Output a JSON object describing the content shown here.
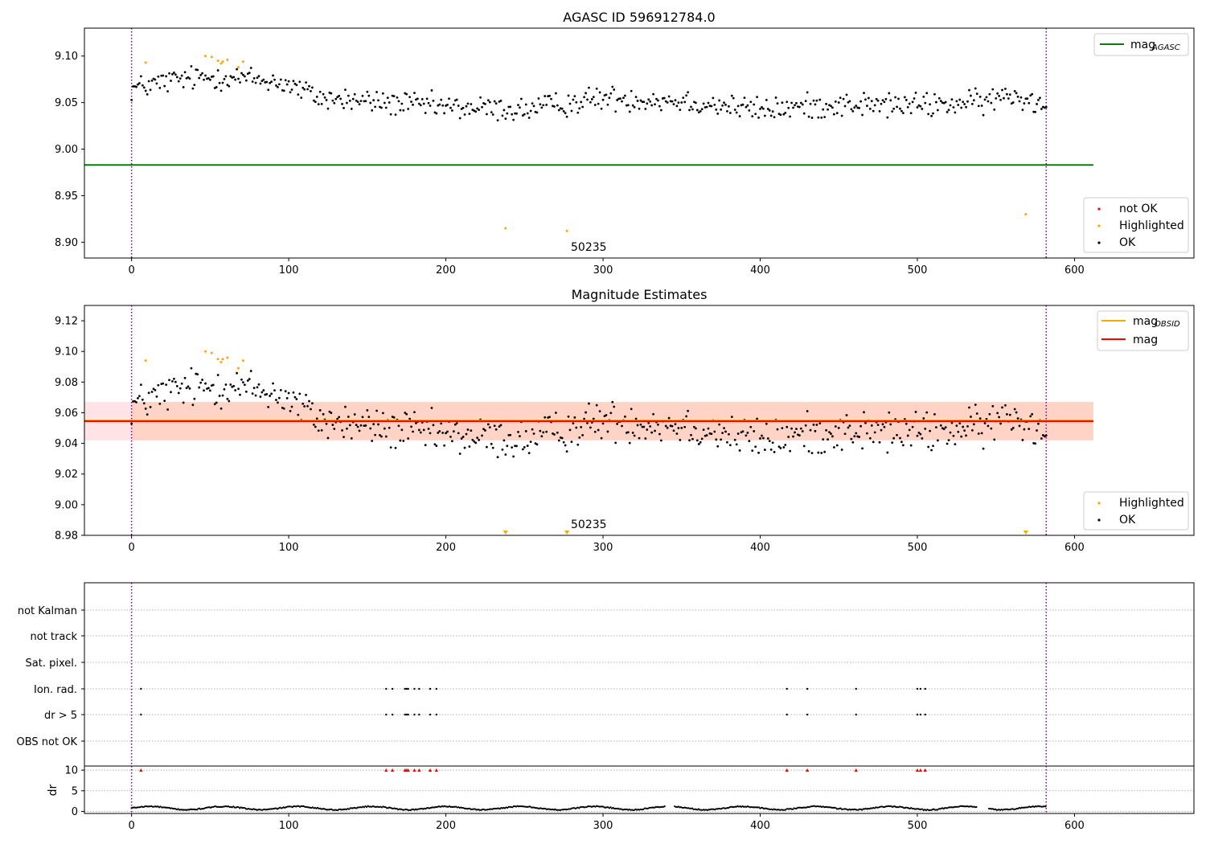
{
  "chart_data": [
    {
      "type": "scatter",
      "title": "AGASC ID 596912784.0",
      "xlim": [
        -30,
        676
      ],
      "ylim": [
        8.883,
        9.13
      ],
      "xticks": [
        "0",
        "100",
        "200",
        "300",
        "400",
        "500",
        "600"
      ],
      "xtick_values": [
        0,
        100,
        200,
        300,
        400,
        500,
        600
      ],
      "yticks": [
        "8.90",
        "8.95",
        "9.00",
        "9.05",
        "9.10"
      ],
      "ytick_values": [
        8.9,
        8.95,
        9.0,
        9.05,
        9.1
      ],
      "vlines": [
        0,
        582
      ],
      "hline": {
        "name": "mag_AGASC",
        "y": 8.983,
        "x_end": 612
      },
      "legend_upper": [
        {
          "label": "mag",
          "sub": "AGASC",
          "color": "#008000",
          "kind": "line"
        }
      ],
      "legend_lower": [
        {
          "label": "not OK",
          "color": "#ff0000",
          "kind": "dot"
        },
        {
          "label": "Highlighted",
          "color": "#ffa500",
          "kind": "dot"
        },
        {
          "label": "OK",
          "color": "#000000",
          "kind": "dot"
        }
      ],
      "annotations": [
        {
          "text": "50235",
          "x": 277,
          "y": 8.893
        }
      ],
      "series": [
        {
          "name": "Highlighted",
          "color": "#ffa500",
          "points": [
            [
              9,
              9.093
            ],
            [
              47,
              9.1
            ],
            [
              51,
              9.099
            ],
            [
              55,
              9.095
            ],
            [
              57,
              9.092
            ],
            [
              58,
              9.094
            ],
            [
              61,
              9.096
            ],
            [
              68,
              9.088
            ],
            [
              71,
              9.094
            ],
            [
              238,
              8.915
            ],
            [
              277,
              8.912
            ],
            [
              569,
              8.93
            ]
          ]
        }
      ],
      "ok_trend": {
        "name": "OK",
        "color": "#000000",
        "anchors": [
          [
            0,
            9.065
          ],
          [
            30,
            9.075
          ],
          [
            60,
            9.078
          ],
          [
            95,
            9.072
          ],
          [
            120,
            9.055
          ],
          [
            160,
            9.05
          ],
          [
            200,
            9.045
          ],
          [
            250,
            9.042
          ],
          [
            300,
            9.055
          ],
          [
            350,
            9.052
          ],
          [
            400,
            9.042
          ],
          [
            450,
            9.048
          ],
          [
            500,
            9.047
          ],
          [
            540,
            9.05
          ],
          [
            560,
            9.058
          ],
          [
            582,
            9.048
          ]
        ],
        "scatter": 0.011
      }
    },
    {
      "type": "scatter",
      "title": "Magnitude Estimates",
      "xlim": [
        -30,
        676
      ],
      "ylim": [
        8.98,
        9.13
      ],
      "xticks": [
        "0",
        "100",
        "200",
        "300",
        "400",
        "500",
        "600"
      ],
      "xtick_values": [
        0,
        100,
        200,
        300,
        400,
        500,
        600
      ],
      "yticks": [
        "8.98",
        "9.00",
        "9.02",
        "9.04",
        "9.06",
        "9.08",
        "9.10",
        "9.12"
      ],
      "ytick_values": [
        8.98,
        9.0,
        9.02,
        9.04,
        9.06,
        9.08,
        9.1,
        9.12
      ],
      "vlines": [
        0,
        582
      ],
      "lines": [
        {
          "name": "mag_OBSID",
          "y": 9.0545,
          "x_start": -30,
          "x_end": 612,
          "color": "#ffa500"
        },
        {
          "name": "mag",
          "y": 9.0545,
          "x_start": -30,
          "x_end": 612,
          "color": "#ff0000"
        }
      ],
      "bands": [
        {
          "y0": 9.042,
          "y1": 9.067,
          "x_start": -30,
          "x_end": 612,
          "color": "#ff9aa8",
          "opacity": 0.28
        },
        {
          "y0": 9.042,
          "y1": 9.067,
          "x_start": 0,
          "x_end": 612,
          "color": "#ffb07a",
          "opacity": 0.3
        }
      ],
      "legend_upper": [
        {
          "label": "mag",
          "sub": "OBSID",
          "color": "#ffa500",
          "kind": "line"
        },
        {
          "label": "mag",
          "sub": "",
          "color": "#ff0000",
          "kind": "line"
        }
      ],
      "legend_lower": [
        {
          "label": "Highlighted",
          "color": "#ffa500",
          "kind": "dot"
        },
        {
          "label": "OK",
          "color": "#000000",
          "kind": "dot"
        }
      ],
      "annotations": [
        {
          "text": "50235",
          "x": 277,
          "y": 8.986
        }
      ],
      "series": [
        {
          "name": "Highlighted",
          "color": "#ffa500",
          "points": [
            [
              9,
              9.094
            ],
            [
              47,
              9.1
            ],
            [
              51,
              9.099
            ],
            [
              55,
              9.095
            ],
            [
              57,
              9.093
            ],
            [
              58,
              9.095
            ],
            [
              61,
              9.096
            ],
            [
              68,
              9.089
            ],
            [
              71,
              9.094
            ]
          ]
        },
        {
          "name": "Highlighted (below range)",
          "color": "#ffa500",
          "marker": "triangle-down",
          "points": [
            [
              238,
              8.981
            ],
            [
              277,
              8.981
            ],
            [
              569,
              8.981
            ]
          ]
        }
      ],
      "ok_trend": {
        "name": "OK",
        "color": "#000000",
        "anchors": [
          [
            0,
            9.065
          ],
          [
            30,
            9.075
          ],
          [
            60,
            9.078
          ],
          [
            95,
            9.072
          ],
          [
            120,
            9.055
          ],
          [
            160,
            9.05
          ],
          [
            200,
            9.045
          ],
          [
            250,
            9.042
          ],
          [
            300,
            9.055
          ],
          [
            350,
            9.052
          ],
          [
            400,
            9.042
          ],
          [
            450,
            9.048
          ],
          [
            500,
            9.047
          ],
          [
            540,
            9.05
          ],
          [
            560,
            9.058
          ],
          [
            582,
            9.048
          ]
        ],
        "scatter": 0.011
      }
    },
    {
      "type": "scatter",
      "xlim": [
        -30,
        676
      ],
      "categories": [
        "not Kalman",
        "not track",
        "Sat. pixel.",
        "Ion. rad.",
        "dr > 5",
        "OBS not OK"
      ],
      "vlines": [
        0,
        582
      ],
      "flag_points": {
        "Ion. rad.": [
          6,
          162,
          166,
          174,
          175,
          176,
          180,
          183,
          190,
          194,
          417,
          430,
          461,
          500,
          502,
          505
        ],
        "dr > 5": [
          6,
          162,
          166,
          174,
          175,
          176,
          180,
          183,
          190,
          194,
          417,
          430,
          461,
          500,
          502,
          505
        ]
      }
    },
    {
      "type": "scatter",
      "ylabel": "dr",
      "xlim": [
        -30,
        676
      ],
      "ylim": [
        -0.5,
        11
      ],
      "xticks": [
        "0",
        "100",
        "200",
        "300",
        "400",
        "500",
        "600"
      ],
      "xtick_values": [
        0,
        100,
        200,
        300,
        400,
        500,
        600
      ],
      "yticks": [
        "0",
        "5",
        "10"
      ],
      "ytick_values": [
        0,
        5,
        10
      ],
      "vlines": [
        0,
        582
      ],
      "threshold_markers": {
        "color": "#ff0000",
        "y": 10,
        "x": [
          6,
          162,
          166,
          174,
          175,
          176,
          180,
          183,
          190,
          194,
          417,
          430,
          461,
          500,
          502,
          505
        ]
      },
      "dr_trend": {
        "x_max": 582,
        "baseline": 0.8,
        "amplitude": 0.5,
        "gaps": [
          [
            340,
            345
          ],
          [
            538,
            545
          ]
        ]
      }
    }
  ]
}
